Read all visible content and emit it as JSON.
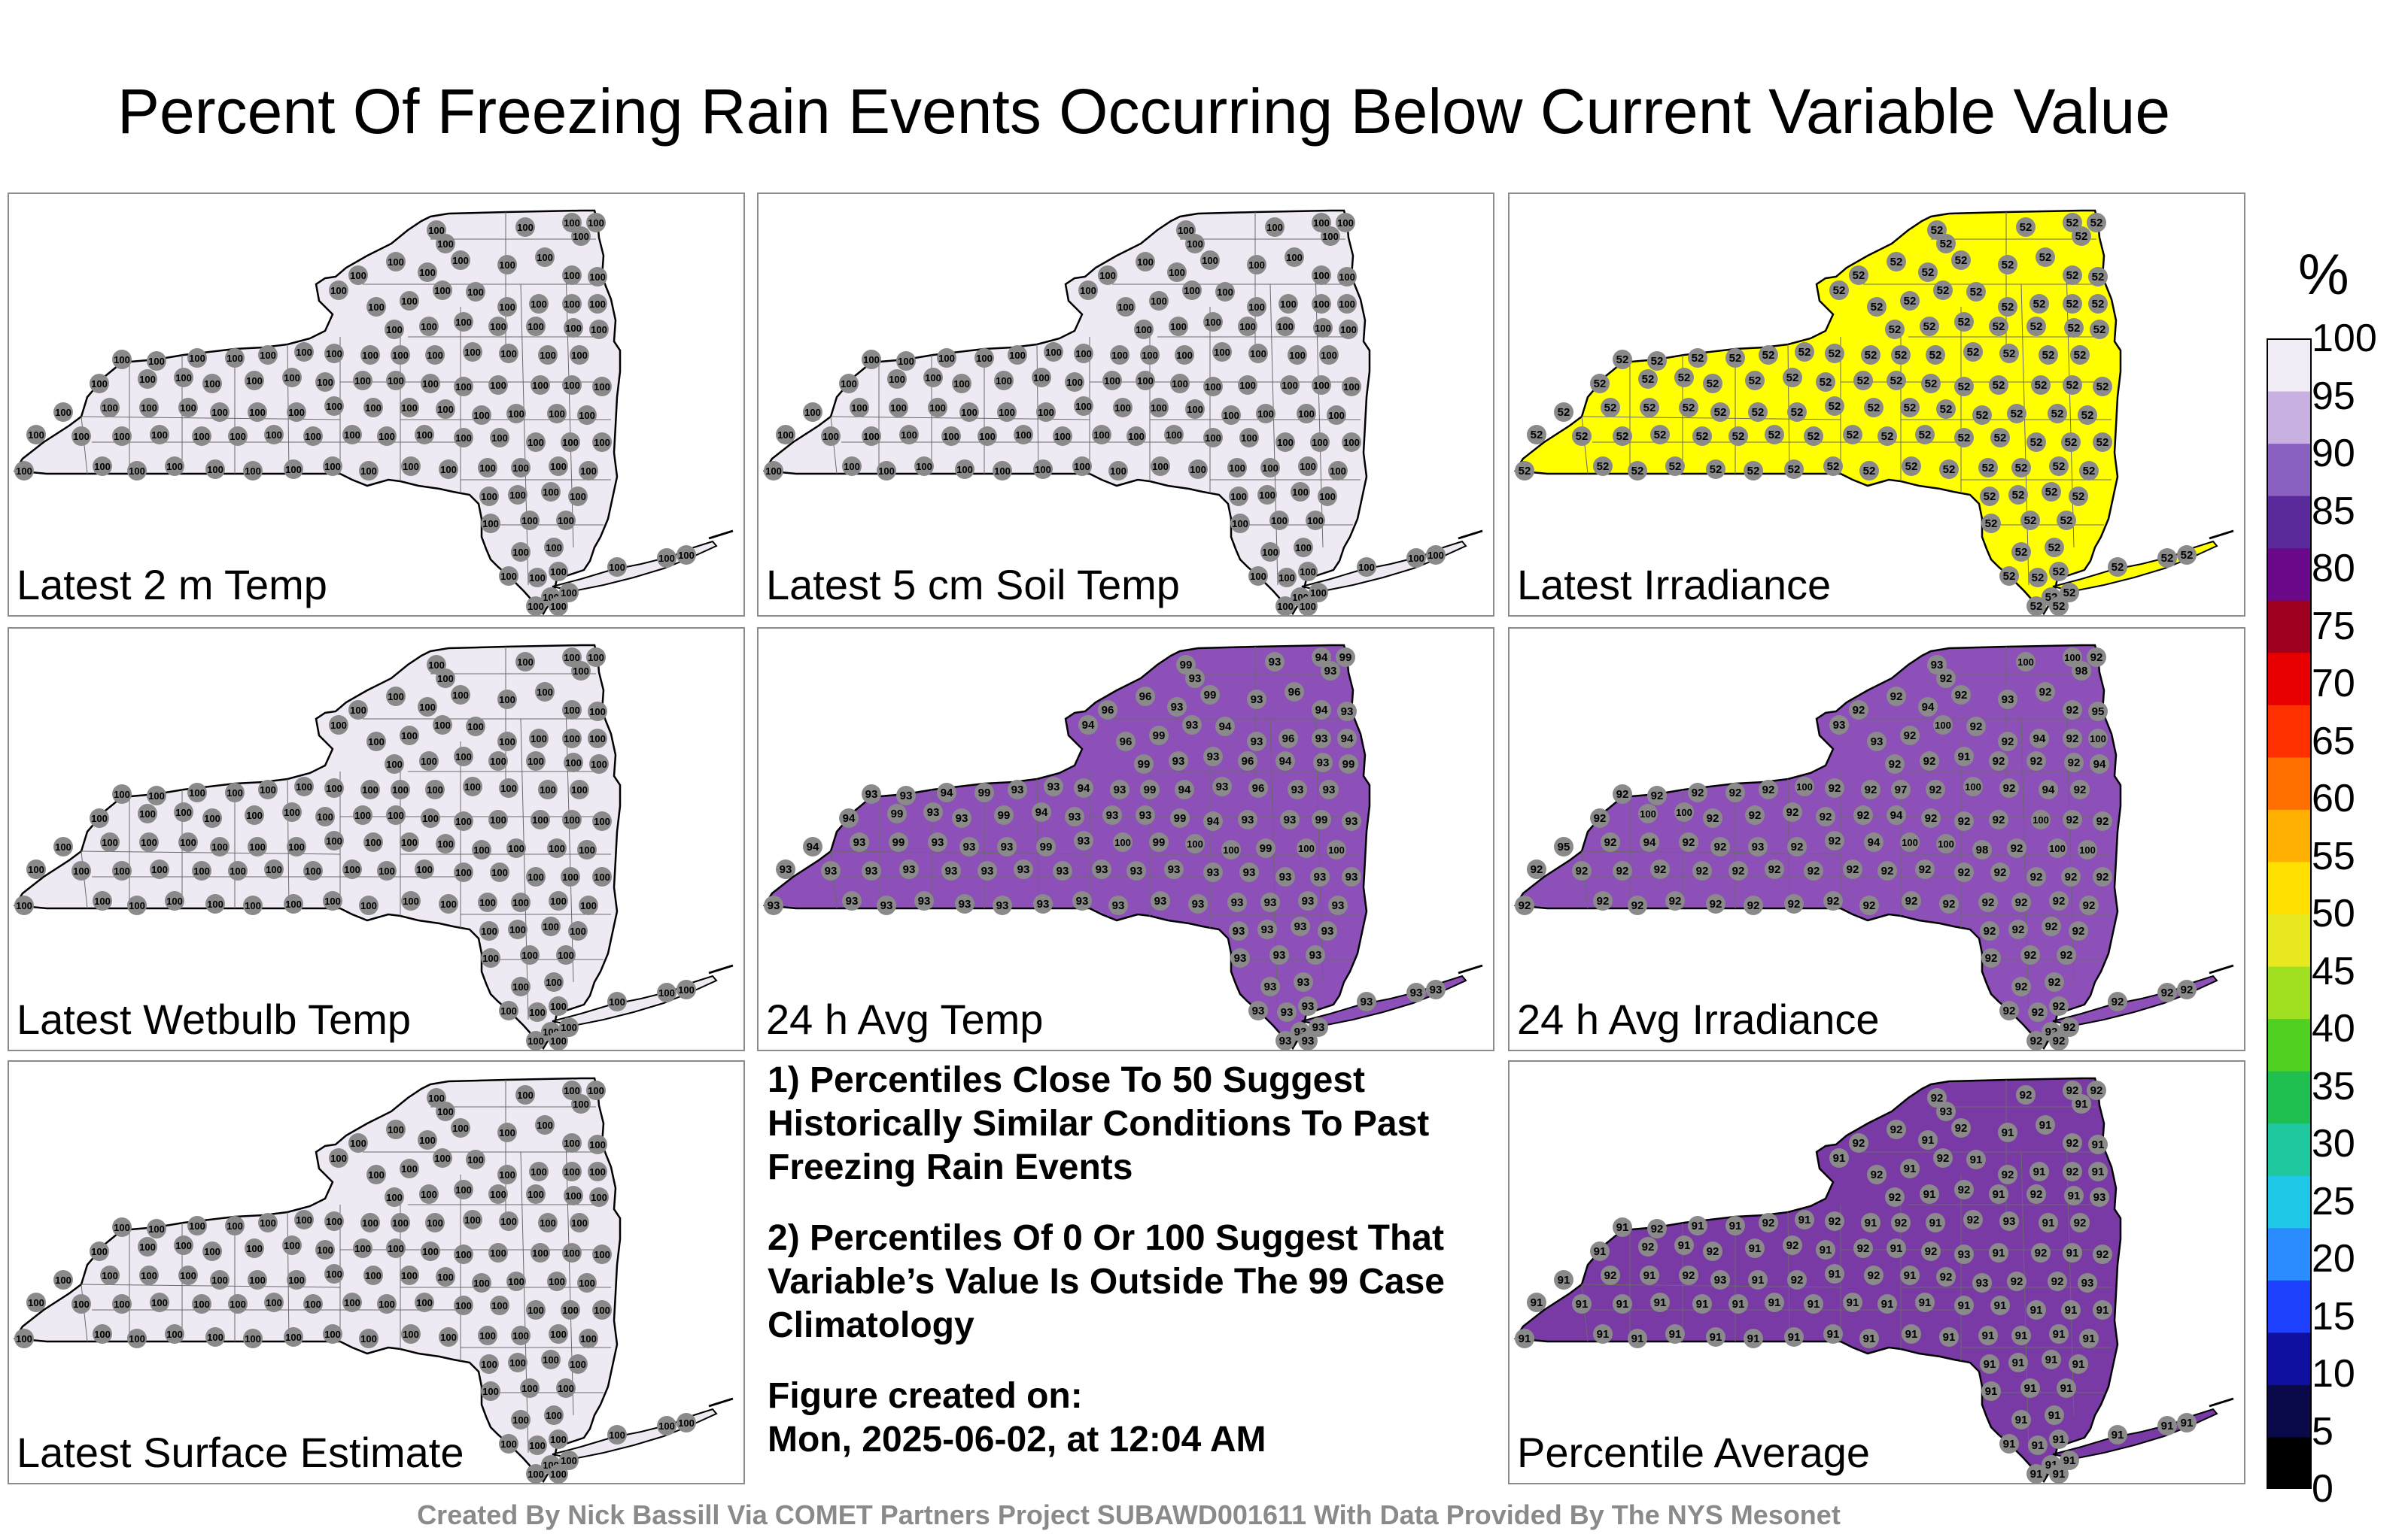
{
  "title": "Percent Of Freezing Rain Events Occurring Below Current Variable Value",
  "panels": [
    {
      "label": "Latest 2 m Temp",
      "fill": "#efe9f3",
      "default_value": "100",
      "overrides": {}
    },
    {
      "label": "Latest 5 cm Soil Temp",
      "fill": "#efe9f3",
      "default_value": "100",
      "overrides": {}
    },
    {
      "label": "Latest Irradiance",
      "fill": "#ffff00",
      "default_value": "52",
      "overrides": {}
    },
    {
      "label": "Latest Wetbulb Temp",
      "fill": "#efe9f3",
      "default_value": "100",
      "overrides": {}
    },
    {
      "label": "24 h Avg Temp",
      "fill": "#8d4fb8",
      "default_value": "93",
      "overrides": {
        "0": "99",
        "1": "93",
        "2": "93",
        "3": "94",
        "4": "99",
        "5": "93",
        "6": "96",
        "7": "94",
        "8": "96",
        "9": "93",
        "10": "99",
        "11": "93",
        "12": "96",
        "13": "94",
        "14": "93",
        "15": "96",
        "16": "99",
        "17": "93",
        "18": "94",
        "19": "93",
        "20": "96",
        "21": "93",
        "22": "94",
        "23": "99",
        "24": "93",
        "25": "93",
        "26": "96",
        "27": "94",
        "28": "93",
        "29": "99",
        "30": "93",
        "31": "93",
        "32": "94",
        "33": "99",
        "34": "93",
        "35": "93",
        "36": "94",
        "37": "93",
        "38": "99",
        "39": "94",
        "40": "93",
        "41": "96",
        "42": "93",
        "43": "93",
        "44": "94",
        "45": "99",
        "46": "93",
        "47": "93",
        "48": "99",
        "49": "94",
        "50": "93",
        "51": "93",
        "52": "93",
        "53": "99",
        "54": "94",
        "55": "93",
        "56": "93",
        "57": "99",
        "58": "93",
        "59": "94",
        "60": "93",
        "61": "99",
        "62": "93",
        "63": "93",
        "64": "93",
        "65": "99",
        "66": "93",
        "67": "100",
        "68": "99",
        "69": "100",
        "70": "100",
        "71": "99",
        "72": "100",
        "73": "100"
      }
    },
    {
      "label": "24 h Avg Irradiance",
      "fill": "#8d4fb8",
      "default_value": "92",
      "overrides": {
        "0": "93",
        "1": "92",
        "2": "100",
        "3": "100",
        "4": "92",
        "5": "98",
        "6": "92",
        "7": "93",
        "8": "92",
        "9": "94",
        "10": "92",
        "11": "93",
        "12": "92",
        "13": "92",
        "14": "95",
        "15": "93",
        "16": "92",
        "17": "100",
        "18": "92",
        "19": "92",
        "20": "94",
        "21": "92",
        "22": "100",
        "23": "92",
        "24": "92",
        "25": "91",
        "26": "92",
        "27": "92",
        "28": "92",
        "29": "94",
        "30": "92",
        "31": "92",
        "32": "92",
        "33": "92",
        "34": "92",
        "35": "100",
        "36": "92",
        "37": "92",
        "38": "97",
        "39": "92",
        "40": "100",
        "41": "92",
        "42": "94",
        "43": "92",
        "44": "92",
        "45": "100",
        "46": "100",
        "47": "92",
        "48": "92",
        "49": "92",
        "50": "92",
        "51": "92",
        "52": "94",
        "53": "92",
        "54": "92",
        "55": "92",
        "56": "100",
        "57": "92",
        "58": "92",
        "59": "95",
        "60": "92",
        "61": "94",
        "62": "92",
        "63": "92",
        "64": "93",
        "65": "92",
        "66": "92",
        "67": "94",
        "68": "100",
        "69": "100",
        "70": "98",
        "71": "92",
        "72": "100",
        "73": "100"
      }
    },
    {
      "label": "Latest Surface Estimate",
      "fill": "#efe9f3",
      "default_value": "100",
      "overrides": {}
    },
    {
      "label": "Percentile Average",
      "fill": "#7a3aa6",
      "default_value": "91",
      "overrides": {
        "0": "92",
        "1": "93",
        "2": "92",
        "3": "92",
        "4": "92",
        "5": "91",
        "6": "92",
        "7": "91",
        "8": "92",
        "9": "91",
        "10": "92",
        "11": "91",
        "12": "91",
        "13": "92",
        "14": "91",
        "15": "92",
        "16": "91",
        "17": "92",
        "18": "91",
        "19": "92",
        "20": "91",
        "21": "92",
        "22": "91",
        "23": "92",
        "24": "91",
        "25": "92",
        "26": "91",
        "27": "92",
        "28": "91",
        "29": "93",
        "30": "91",
        "31": "92",
        "32": "91",
        "33": "91",
        "34": "92",
        "35": "91",
        "36": "92",
        "37": "91",
        "38": "92",
        "39": "91",
        "40": "92",
        "41": "93",
        "42": "91",
        "43": "92",
        "44": "91",
        "45": "92",
        "46": "91",
        "47": "92",
        "48": "91",
        "49": "92",
        "50": "91",
        "51": "92",
        "52": "91",
        "53": "92",
        "54": "93",
        "55": "91",
        "56": "92",
        "57": "91",
        "58": "92",
        "59": "91",
        "60": "92",
        "61": "91",
        "62": "92",
        "63": "93",
        "64": "91",
        "65": "92",
        "66": "91",
        "67": "92",
        "68": "91",
        "69": "92",
        "70": "93",
        "71": "92",
        "72": "92",
        "73": "93"
      }
    }
  ],
  "notes": [
    "1) Percentiles Close To 50 Suggest Historically Similar Conditions To Past Freezing Rain Events",
    "2) Percentiles Of 0 Or 100 Suggest That Variable’s Value Is Outside The 99 Case Climatology",
    "Figure created on:",
    "Mon, 2025-06-02, at 12:04 AM"
  ],
  "colorbar": {
    "unit": "%",
    "ticks": [
      "100",
      "95",
      "90",
      "85",
      "80",
      "75",
      "70",
      "65",
      "60",
      "55",
      "50",
      "45",
      "40",
      "35",
      "30",
      "25",
      "20",
      "15",
      "10",
      "5",
      "0"
    ],
    "colors": [
      "#000000",
      "#0a0a4a",
      "#1010a0",
      "#1e40ff",
      "#2a8cff",
      "#20c8e8",
      "#20c8a0",
      "#20c050",
      "#50d020",
      "#a0e020",
      "#e8e820",
      "#ffe000",
      "#ffb000",
      "#ff7000",
      "#ff3000",
      "#e80000",
      "#a00020",
      "#6a0a8a",
      "#5a2a9a",
      "#8a60c0",
      "#c8b0e0",
      "#f2ecf6"
    ]
  },
  "credit": "Created By Nick Bassill Via COMET Partners Project SUBAWD001611 With Data Provided By The NYS Mesonet"
}
